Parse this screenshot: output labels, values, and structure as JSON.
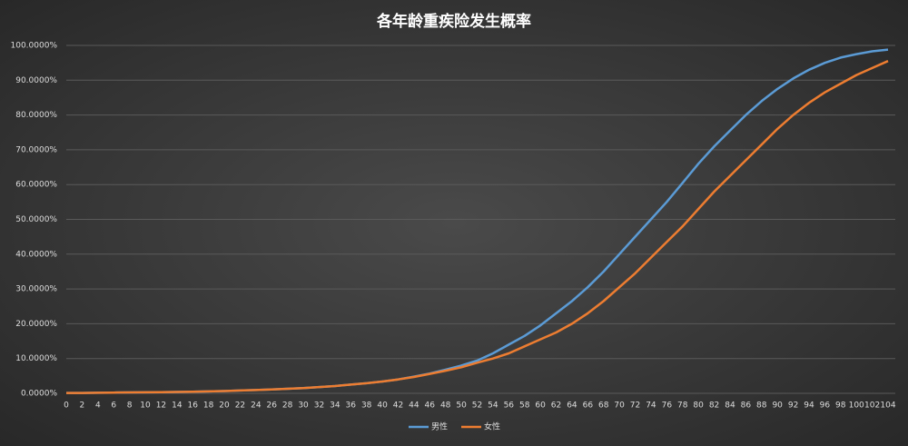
{
  "chart_data": {
    "type": "line",
    "title": "各年龄重疾险发生概率",
    "categories": [
      "0",
      "2",
      "4",
      "6",
      "8",
      "10",
      "12",
      "14",
      "16",
      "18",
      "20",
      "22",
      "24",
      "26",
      "28",
      "30",
      "32",
      "34",
      "36",
      "38",
      "40",
      "42",
      "44",
      "46",
      "48",
      "50",
      "52",
      "54",
      "56",
      "58",
      "60",
      "62",
      "64",
      "66",
      "68",
      "70",
      "72",
      "74",
      "76",
      "78",
      "80",
      "82",
      "84",
      "86",
      "88",
      "90",
      "92",
      "94",
      "96",
      "98",
      "100",
      "102",
      "104"
    ],
    "series": [
      {
        "name": "男性",
        "color": "#5b9bd5",
        "values": [
          0.1,
          0.1,
          0.15,
          0.2,
          0.25,
          0.3,
          0.35,
          0.4,
          0.45,
          0.55,
          0.65,
          0.8,
          0.95,
          1.1,
          1.3,
          1.5,
          1.8,
          2.1,
          2.5,
          2.9,
          3.4,
          4.0,
          4.8,
          5.7,
          6.8,
          8.0,
          9.4,
          11.5,
          14,
          16.5,
          19.5,
          23,
          26.5,
          30.5,
          35,
          40,
          45,
          50,
          55,
          60.5,
          66,
          71,
          75.5,
          80,
          84,
          87.5,
          90.5,
          93,
          95,
          96.5,
          97.5,
          98.3,
          98.8
        ]
      },
      {
        "name": "女性",
        "color": "#ed7d31",
        "values": [
          0.1,
          0.1,
          0.15,
          0.2,
          0.25,
          0.3,
          0.35,
          0.4,
          0.45,
          0.55,
          0.65,
          0.8,
          0.95,
          1.1,
          1.3,
          1.5,
          1.8,
          2.1,
          2.5,
          2.9,
          3.4,
          4.0,
          4.7,
          5.6,
          6.5,
          7.5,
          8.8,
          10,
          11.5,
          13.5,
          15.5,
          17.5,
          20,
          23,
          26.5,
          30.5,
          34.5,
          39,
          43.5,
          48,
          53,
          58,
          62.5,
          67,
          71.5,
          76,
          80,
          83.5,
          86.5,
          89,
          91.5,
          93.5,
          95.5
        ]
      }
    ],
    "ylim": [
      0,
      100
    ],
    "yticks": [
      {
        "value": 0,
        "label": "0.0000%"
      },
      {
        "value": 10,
        "label": "10.0000%"
      },
      {
        "value": 20,
        "label": "20.0000%"
      },
      {
        "value": 30,
        "label": "30.0000%"
      },
      {
        "value": 40,
        "label": "40.0000%"
      },
      {
        "value": 50,
        "label": "50.0000%"
      },
      {
        "value": 60,
        "label": "60.0000%"
      },
      {
        "value": 70,
        "label": "70.0000%"
      },
      {
        "value": 80,
        "label": "80.0000%"
      },
      {
        "value": 90,
        "label": "90.0000%"
      },
      {
        "value": 100,
        "label": "100.0000%"
      }
    ],
    "grid": true
  }
}
